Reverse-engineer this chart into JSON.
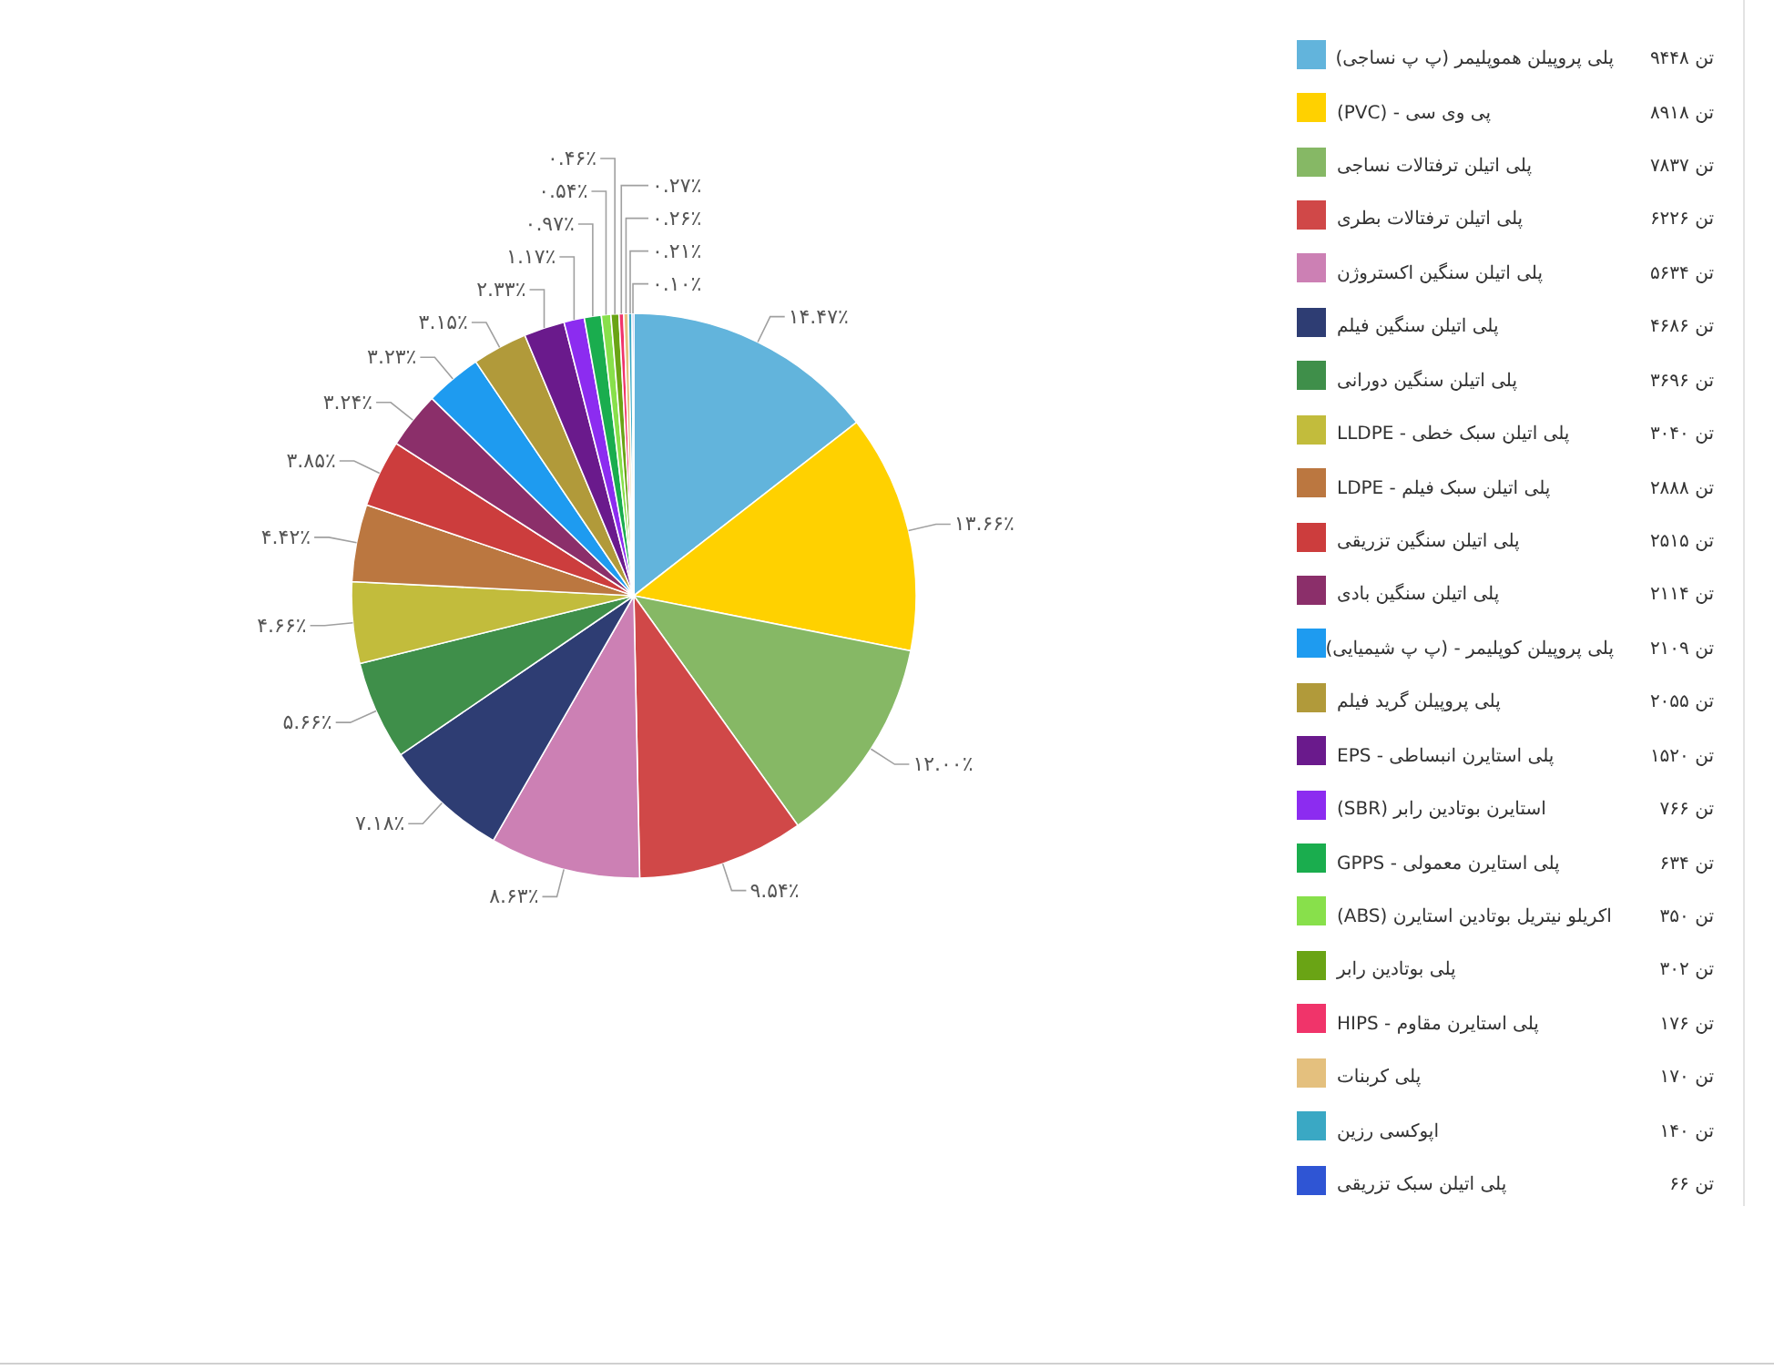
{
  "chart_data": {
    "type": "pie",
    "categories": [
      "پلی پروپیلن هموپلیمر (پ پ نساجی)",
      "پی وی سی - (PVC)",
      "پلی اتیلن ترفتالات نساجی",
      "پلی اتیلن ترفتالات بطری",
      "پلی اتیلن سنگین اکستروژن",
      "پلی اتیلن سنگین فیلم",
      "پلی اتیلن سنگین دورانی",
      "پلی اتیلن سبک خطی - LLDPE",
      "پلی اتیلن سبک فیلم - LDPE",
      "پلی اتیلن سنگین تزریقی",
      "پلی اتیلن سنگین بادی",
      "پلی پروپیلن کوپلیمر - (پ پ شیمیایی)",
      "پلی پروپیلن گرید فیلم",
      "پلی استایرن انبساطی - EPS",
      "استایرن بوتادین رابر (SBR)",
      "پلی استایرن معمولی - GPPS",
      "اکریلو نیتریل بوتادین استایرن (ABS)",
      "پلی بوتادین رابر",
      "پلی استایرن مقاوم - HIPS",
      "پلی کربنات",
      "اپوکسی رزین",
      "پلی اتیلن سبک تزریقی"
    ],
    "values": [
      14.47,
      13.66,
      12.0,
      9.54,
      8.63,
      7.18,
      5.66,
      4.66,
      4.42,
      3.85,
      3.24,
      3.23,
      3.15,
      2.33,
      1.17,
      0.97,
      0.54,
      0.46,
      0.27,
      0.26,
      0.21,
      0.1
    ],
    "colors": [
      "#62b4dc",
      "#ffd100",
      "#86b865",
      "#d04848",
      "#cc80b4",
      "#2e3d73",
      "#3f8f4a",
      "#c2bc3c",
      "#bb7740",
      "#cc3d3d",
      "#8b2f6a",
      "#1e9bf0",
      "#b19a3a",
      "#6a1a8c",
      "#8c2cf0",
      "#1aad4e",
      "#88e04b",
      "#6aa415",
      "#f0346a",
      "#e4c07e",
      "#3aa8c4",
      "#2f55d4"
    ],
    "value_labels": [
      "۱۴.۴۷٪",
      "۱۳.۶۶٪",
      "۱۲.۰۰٪",
      "۹.۵۴٪",
      "۸.۶۳٪",
      "۷.۱۸٪",
      "۵.۶۶٪",
      "۴.۶۶٪",
      "۴.۴۲٪",
      "۳.۸۵٪",
      "۳.۲۴٪",
      "۳.۲۳٪",
      "۳.۱۵٪",
      "۲.۳۳٪",
      "۱.۱۷٪",
      "۰.۹۷٪",
      "۰.۵۴٪",
      "۰.۴۶٪",
      "۰.۲۷٪",
      "۰.۲۶٪",
      "۰.۲۱٪",
      "۰.۱۰٪"
    ],
    "annotations": [
      "تن ۹۴۴۸",
      "تن ۸۹۱۸",
      "تن ۷۸۳۷",
      "تن ۶۲۲۶",
      "تن ۵۶۳۴",
      "تن ۴۶۸۶",
      "تن ۳۶۹۶",
      "تن ۳۰۴۰",
      "تن ۲۸۸۸",
      "تن ۲۵۱۵",
      "تن ۲۱۱۴",
      "تن ۲۱۰۹",
      "تن ۲۰۵۵",
      "تن ۱۵۲۰",
      "تن ۷۶۶",
      "تن ۶۳۴",
      "تن ۳۵۰",
      "تن ۳۰۲",
      "تن ۱۷۶",
      "تن ۱۷۰",
      "تن ۱۴۰",
      "تن ۶۶"
    ],
    "legend": "right"
  }
}
